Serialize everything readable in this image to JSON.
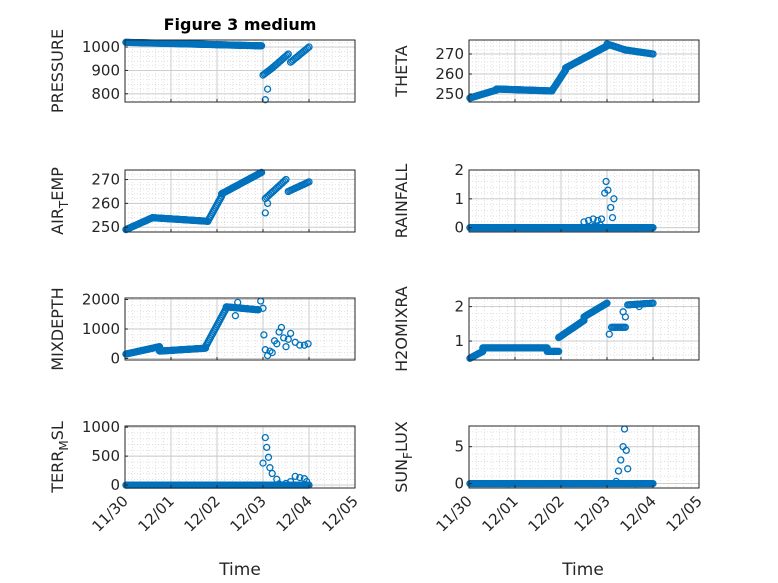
{
  "figure": {
    "title": "Figure 3 medium",
    "xlabel": "Time"
  },
  "chart_data": [
    {
      "type": "scatter",
      "ylabel": "PRESSURE",
      "yticks": [
        "800",
        "900",
        "1000"
      ],
      "ylim": [
        765,
        1030
      ],
      "xticks": [
        "11/30",
        "12/01",
        "12/02",
        "12/03",
        "12/04",
        "12/05"
      ],
      "xlim": [
        0,
        5
      ],
      "segments": [
        {
          "x0": 0.02,
          "x1": 2.97,
          "y0": 1020,
          "y1": 1005,
          "step": 0.02
        },
        {
          "x0": 3.0,
          "x1": 3.2,
          "y0": 880,
          "y1": 910,
          "step": 0.03
        },
        {
          "x0": 3.2,
          "x1": 3.55,
          "y0": 910,
          "y1": 970,
          "step": 0.03
        },
        {
          "x0": 3.6,
          "x1": 4.0,
          "y0": 935,
          "y1": 1000,
          "step": 0.03
        }
      ],
      "points": [
        [
          3.05,
          775
        ],
        [
          3.1,
          820
        ]
      ]
    },
    {
      "type": "scatter",
      "ylabel": "THETA",
      "yticks": [
        "250",
        "260",
        "270"
      ],
      "ylim": [
        246,
        277
      ],
      "xticks": [
        "11/30",
        "12/01",
        "12/02",
        "12/03",
        "12/04",
        "12/05"
      ],
      "xlim": [
        0,
        5
      ],
      "segments": [
        {
          "x0": 0.02,
          "x1": 0.6,
          "y0": 248,
          "y1": 252,
          "step": 0.02
        },
        {
          "x0": 0.6,
          "x1": 1.8,
          "y0": 252.5,
          "y1": 251.5,
          "step": 0.02
        },
        {
          "x0": 1.8,
          "x1": 2.1,
          "y0": 251.5,
          "y1": 262,
          "step": 0.02
        },
        {
          "x0": 2.1,
          "x1": 3.0,
          "y0": 263,
          "y1": 274,
          "step": 0.02
        },
        {
          "x0": 3.0,
          "x1": 3.4,
          "y0": 275,
          "y1": 272,
          "step": 0.03
        },
        {
          "x0": 3.4,
          "x1": 4.0,
          "y0": 272,
          "y1": 270,
          "step": 0.03
        }
      ],
      "points": []
    },
    {
      "type": "scatter",
      "ylabel": "AIR_TEMP",
      "yticks": [
        "250",
        "260",
        "270"
      ],
      "ylim": [
        248,
        274
      ],
      "xticks": [
        "11/30",
        "12/01",
        "12/02",
        "12/03",
        "12/04",
        "12/05"
      ],
      "xlim": [
        0,
        5
      ],
      "segments": [
        {
          "x0": 0.02,
          "x1": 0.6,
          "y0": 249,
          "y1": 254,
          "step": 0.02
        },
        {
          "x0": 0.6,
          "x1": 1.8,
          "y0": 254,
          "y1": 252.5,
          "step": 0.02
        },
        {
          "x0": 1.8,
          "x1": 2.1,
          "y0": 252.5,
          "y1": 263,
          "step": 0.02
        },
        {
          "x0": 2.1,
          "x1": 2.97,
          "y0": 264,
          "y1": 273,
          "step": 0.02
        },
        {
          "x0": 3.05,
          "x1": 3.5,
          "y0": 262,
          "y1": 270,
          "step": 0.03
        },
        {
          "x0": 3.55,
          "x1": 4.0,
          "y0": 265,
          "y1": 269,
          "step": 0.03
        }
      ],
      "points": [
        [
          3.05,
          256
        ],
        [
          3.1,
          260
        ]
      ]
    },
    {
      "type": "scatter",
      "ylabel": "RAINFALL",
      "yticks": [
        "0",
        "1",
        "2"
      ],
      "ylim": [
        -0.15,
        2.0
      ],
      "xticks": [
        "11/30",
        "12/01",
        "12/02",
        "12/03",
        "12/04",
        "12/05"
      ],
      "xlim": [
        0,
        5
      ],
      "segments": [
        {
          "x0": 0.02,
          "x1": 4.0,
          "y0": 0,
          "y1": 0,
          "step": 0.02
        }
      ],
      "points": [
        [
          2.5,
          0.2
        ],
        [
          2.6,
          0.25
        ],
        [
          2.7,
          0.3
        ],
        [
          2.8,
          0.25
        ],
        [
          2.88,
          0.3
        ],
        [
          2.95,
          1.2
        ],
        [
          2.98,
          1.6
        ],
        [
          3.02,
          1.3
        ],
        [
          3.08,
          0.7
        ],
        [
          3.12,
          0.35
        ],
        [
          3.15,
          1.0
        ],
        [
          2.72,
          0.05
        ],
        [
          2.85,
          0.1
        ]
      ]
    },
    {
      "type": "scatter",
      "ylabel": "MIXDEPTH",
      "yticks": [
        "0",
        "1000",
        "2000"
      ],
      "ylim": [
        -50,
        2050
      ],
      "xticks": [
        "11/30",
        "12/01",
        "12/02",
        "12/03",
        "12/04",
        "12/05"
      ],
      "xlim": [
        0,
        5
      ],
      "segments": [
        {
          "x0": 0.02,
          "x1": 0.75,
          "y0": 150,
          "y1": 400,
          "step": 0.02
        },
        {
          "x0": 0.75,
          "x1": 1.75,
          "y0": 250,
          "y1": 350,
          "step": 0.02
        },
        {
          "x0": 1.75,
          "x1": 2.2,
          "y0": 400,
          "y1": 1700,
          "step": 0.02
        },
        {
          "x0": 2.2,
          "x1": 2.9,
          "y0": 1750,
          "y1": 1650,
          "step": 0.02
        }
      ],
      "points": [
        [
          2.4,
          1450
        ],
        [
          2.45,
          1900
        ],
        [
          2.95,
          1950
        ],
        [
          3.0,
          1700
        ],
        [
          3.02,
          800
        ],
        [
          3.05,
          300
        ],
        [
          3.1,
          100
        ],
        [
          3.15,
          250
        ],
        [
          3.2,
          200
        ],
        [
          3.25,
          600
        ],
        [
          3.3,
          500
        ],
        [
          3.35,
          900
        ],
        [
          3.4,
          1050
        ],
        [
          3.45,
          700
        ],
        [
          3.5,
          400
        ],
        [
          3.55,
          650
        ],
        [
          3.6,
          850
        ],
        [
          3.7,
          550
        ],
        [
          3.8,
          450
        ],
        [
          3.9,
          450
        ],
        [
          3.98,
          500
        ]
      ]
    },
    {
      "type": "scatter",
      "ylabel": "H2OMIXRA",
      "yticks": [
        "1",
        "2"
      ],
      "ylim": [
        0.45,
        2.25
      ],
      "xticks": [
        "11/30",
        "12/01",
        "12/02",
        "12/03",
        "12/04",
        "12/05"
      ],
      "xlim": [
        0,
        5
      ],
      "segments": [
        {
          "x0": 0.02,
          "x1": 0.3,
          "y0": 0.5,
          "y1": 0.7,
          "step": 0.02
        },
        {
          "x0": 0.3,
          "x1": 1.7,
          "y0": 0.8,
          "y1": 0.8,
          "step": 0.02
        },
        {
          "x0": 1.7,
          "x1": 1.95,
          "y0": 0.7,
          "y1": 0.7,
          "step": 0.02
        },
        {
          "x0": 1.95,
          "x1": 2.5,
          "y0": 1.1,
          "y1": 1.6,
          "step": 0.02
        },
        {
          "x0": 2.5,
          "x1": 3.0,
          "y0": 1.7,
          "y1": 2.1,
          "step": 0.02
        },
        {
          "x0": 3.1,
          "x1": 3.4,
          "y0": 1.4,
          "y1": 1.4,
          "step": 0.03
        },
        {
          "x0": 3.45,
          "x1": 4.0,
          "y0": 2.05,
          "y1": 2.1,
          "step": 0.03
        }
      ],
      "points": [
        [
          3.05,
          1.2
        ],
        [
          3.35,
          1.85
        ],
        [
          3.4,
          1.7
        ],
        [
          3.7,
          2.0
        ]
      ]
    },
    {
      "type": "scatter",
      "ylabel": "TERR_MSL",
      "yticks": [
        "0",
        "500",
        "1000"
      ],
      "ylim": [
        -50,
        1020
      ],
      "xticks": [
        "11/30",
        "12/01",
        "12/02",
        "12/03",
        "12/04",
        "12/05"
      ],
      "xlim": [
        0,
        5
      ],
      "segments": [
        {
          "x0": 0.02,
          "x1": 4.0,
          "y0": 0,
          "y1": 0,
          "step": 0.02
        }
      ],
      "points": [
        [
          3.0,
          380
        ],
        [
          3.05,
          820
        ],
        [
          3.08,
          650
        ],
        [
          3.12,
          480
        ],
        [
          3.15,
          300
        ],
        [
          3.2,
          200
        ],
        [
          3.3,
          100
        ],
        [
          3.35,
          20
        ],
        [
          3.5,
          30
        ],
        [
          3.6,
          60
        ],
        [
          3.7,
          150
        ],
        [
          3.8,
          130
        ],
        [
          3.9,
          110
        ],
        [
          3.95,
          60
        ]
      ]
    },
    {
      "type": "scatter",
      "ylabel": "SUN_FLUX",
      "yticks": [
        "0",
        "5"
      ],
      "ylim": [
        -0.6,
        7.8
      ],
      "xticks": [
        "11/30",
        "12/01",
        "12/02",
        "12/03",
        "12/04",
        "12/05"
      ],
      "xlim": [
        0,
        5
      ],
      "segments": [
        {
          "x0": 0.02,
          "x1": 4.0,
          "y0": 0,
          "y1": 0,
          "step": 0.02
        }
      ],
      "points": [
        [
          3.2,
          0.3
        ],
        [
          3.25,
          1.7
        ],
        [
          3.3,
          3.2
        ],
        [
          3.35,
          5.0
        ],
        [
          3.38,
          7.4
        ],
        [
          3.42,
          4.5
        ],
        [
          3.45,
          2.0
        ]
      ]
    }
  ]
}
